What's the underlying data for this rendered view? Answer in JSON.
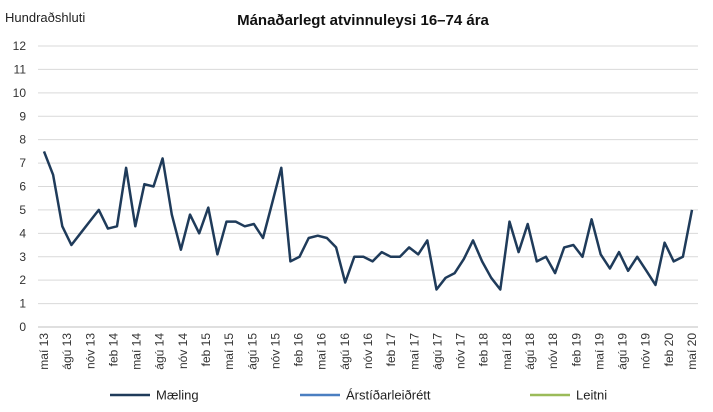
{
  "chart_data": {
    "type": "line",
    "title": "Mánaðarlegt atvinnuleysi 16–74 ára",
    "ylabel": "Hundraðshluti",
    "xlabel": "",
    "ylim": [
      0,
      12
    ],
    "yticks": [
      0,
      1,
      2,
      3,
      4,
      5,
      6,
      7,
      8,
      9,
      10,
      11,
      12
    ],
    "grid": "horizontal",
    "legend": "bottom",
    "x_tick_labels": [
      "maí 13",
      "ágú 13",
      "nóv 13",
      "feb 14",
      "maí 14",
      "ágú 14",
      "nóv 14",
      "feb 15",
      "maí 15",
      "ágú 15",
      "nóv 15",
      "feb 16",
      "maí 16",
      "ágú 16",
      "nóv 16",
      "feb 17",
      "maí 17",
      "ágú 17",
      "nóv 17",
      "feb 18",
      "maí 18",
      "ágú 18",
      "nóv 18",
      "feb 19",
      "maí 19",
      "ágú 19",
      "nóv 19",
      "feb 20",
      "maí 20"
    ],
    "x_start": "2013-05",
    "x_end": "2020-05",
    "series": [
      {
        "name": "Mæling",
        "color": "#1f3b5a",
        "values": [
          7.5,
          6.5,
          4.3,
          3.5,
          4.0,
          4.5,
          5.0,
          4.2,
          4.3,
          6.8,
          4.3,
          6.1,
          6.0,
          7.2,
          4.8,
          3.3,
          4.8,
          4.0,
          5.1,
          3.1,
          4.5,
          4.5,
          4.3,
          4.4,
          3.8,
          5.3,
          6.8,
          2.8,
          3.0,
          3.8,
          3.9,
          3.8,
          3.4,
          1.9,
          3.0,
          3.0,
          2.8,
          3.2,
          3.0,
          3.0,
          3.4,
          3.1,
          3.7,
          1.6,
          2.1,
          2.3,
          2.9,
          3.7,
          2.8,
          2.1,
          1.6,
          4.5,
          3.2,
          4.4,
          2.8,
          3.0,
          2.3,
          3.4,
          3.5,
          3.0,
          4.6,
          3.1,
          2.5,
          3.2,
          2.4,
          3.0,
          2.4,
          1.8,
          3.6,
          2.8,
          3.0,
          5.0
        ]
      },
      {
        "name": "Árstíðarleiðrétt",
        "color": "#4a7fc1",
        "values": []
      },
      {
        "name": "Leitni",
        "color": "#9bbb59",
        "values": []
      }
    ]
  }
}
